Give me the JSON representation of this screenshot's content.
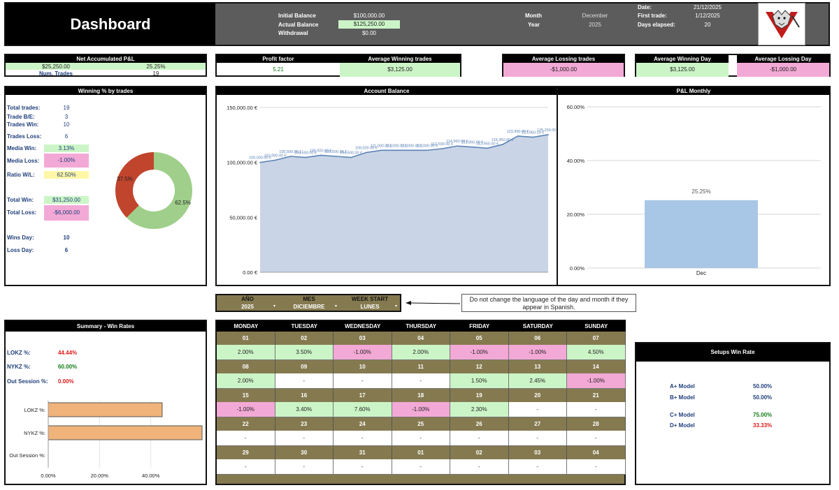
{
  "header": {
    "title": "Dashboard",
    "initial_balance_label": "Initial Balance",
    "initial_balance_value": "$100,000.00",
    "actual_balance_label": "Actual Balance",
    "actual_balance_value": "$125,250.00",
    "withdrawal_label": "Withdrawal",
    "withdrawal_value": "$0.00",
    "month_label": "Month",
    "month_value": "December",
    "year_label": "Year",
    "year_value": "2025",
    "date_label": "Date:",
    "date_value": "21/12/2025",
    "first_trade_label": "First trade:",
    "first_trade_value": "1/12/2025",
    "days_elapsed_label": "Days elapsed:",
    "days_elapsed_value": "20"
  },
  "stats": {
    "net_pnl_label": "Net Accumulated P&L",
    "net_pnl_value": "$25,250.00",
    "net_pnl_pct": "25.25%",
    "num_trades_label": "Num. Trades",
    "num_trades_value": "19",
    "profit_factor_label": "Profit factor",
    "profit_factor_value": "5.21",
    "avg_win_trades_label": "Average Winning trades",
    "avg_win_trades_value": "$3,125.00",
    "avg_loss_trades_label": "Average Lossing trades",
    "avg_loss_trades_value": "-$1,000.00",
    "avg_win_day_label": "Average Winning Day",
    "avg_win_day_value": "$3,125.00",
    "avg_loss_day_label": "Average Lossing Day",
    "avg_loss_day_value": "-$1,000.00"
  },
  "winning_panel": {
    "title": "Winning % by trades",
    "rows": [
      {
        "label": "Total trades:",
        "value": "19"
      },
      {
        "label": "Trade B/E:",
        "value": "3"
      },
      {
        "label": "Trades Win:",
        "value": "10"
      },
      {
        "label": "Trades Loss:",
        "value": "6"
      },
      {
        "label": "Media Win:",
        "value": "3.13%"
      },
      {
        "label": "Media Loss:",
        "value": "-1.00%"
      },
      {
        "label": "Ratio W/L:",
        "value": "62.50%"
      },
      {
        "label": "Total Win:",
        "value": "$31,250.00"
      },
      {
        "label": "Total Loss:",
        "value": "-$6,000.00"
      },
      {
        "label": "Wins Day:",
        "value": "10"
      },
      {
        "label": "Loss Day:",
        "value": "6"
      }
    ],
    "donut": {
      "win_pct": 62.5,
      "loss_pct": 37.5,
      "win_label": "62.5%",
      "loss_label": "37.5%",
      "win_color": "#9fcf8a",
      "loss_color": "#c0452c"
    }
  },
  "account_balance": {
    "title": "Account Balance",
    "y_ticks": [
      "150,000.00 €",
      "100,000.00 €",
      "50,000.00 €",
      "0.00 €"
    ]
  },
  "pnl_monthly": {
    "title": "P&L Monthly",
    "y_ticks": [
      "60.00%",
      "40.00%",
      "20.00%",
      "0.00%"
    ]
  },
  "chart_data": [
    {
      "type": "area",
      "title": "Account Balance",
      "ylim": [
        0,
        150000
      ],
      "grid": true,
      "series": [
        {
          "values": [
            100000,
            102000,
            105500,
            104500,
            106500,
            105500,
            104500,
            109000,
            111000,
            111000,
            111000,
            111000,
            112500,
            114950,
            113950,
            112950,
            116350,
            123950,
            122950,
            125250
          ],
          "labels": [
            "100,000.00 €",
            "102,000.00 €",
            "105,500.00 €",
            "104,500.00 €",
            "106,500.00 €",
            "105,500.00 €",
            "104,500.00 €",
            "109,000.00 €",
            "111,000.00 €",
            "111,000.00 €",
            "111,000.00 €",
            "111,000.00 €",
            "112,500.00 €",
            "114,950.00 €",
            "113,950.00 €",
            "112,950.00 €",
            "116,350.00 €",
            "123,950.00 €",
            "122,950.00 €",
            "125,250.00 €"
          ]
        }
      ]
    },
    {
      "type": "bar",
      "title": "P&L Monthly",
      "categories": [
        "Dec"
      ],
      "values": [
        25.25
      ],
      "value_labels": [
        "25.25%"
      ],
      "ylim": [
        0,
        60
      ],
      "grid": true,
      "color": "#a8c7e6"
    },
    {
      "type": "bar",
      "title": "Summary - Win Rates",
      "orientation": "horizontal",
      "categories": [
        "LOKZ %:",
        "NYKZ %:",
        "Out Session %:"
      ],
      "values": [
        44.44,
        60.0,
        0.0
      ],
      "xlim": [
        0,
        60
      ],
      "x_ticks": [
        "0.00%",
        "20.00%",
        "40.00%"
      ],
      "color": "#f0b37a"
    }
  ],
  "selectors": {
    "year_label": "AÑO",
    "year_value": "2025",
    "month_label": "MES",
    "month_value": "DICIEMBRE",
    "week_label": "WEEK START",
    "week_value": "LUNES",
    "note": "Do not change the language of the day and month if they appear in Spanish."
  },
  "summary": {
    "title": "Summary - Win Rates",
    "rows": [
      {
        "label": "LOKZ %:",
        "value": "44.44%",
        "color": "#e01818"
      },
      {
        "label": "NYKZ %:",
        "value": "60.00%",
        "color": "#127a14"
      },
      {
        "label": "Out Session %:",
        "value": "0.00%",
        "color": "#e01818"
      }
    ]
  },
  "calendar": {
    "days": [
      "MONDAY",
      "TUESDAY",
      "WEDNESDAY",
      "THURSDAY",
      "FRIDAY",
      "SATURDAY",
      "SUNDAY"
    ],
    "weeks": [
      {
        "dates": [
          "01",
          "02",
          "03",
          "04",
          "05",
          "06",
          "07"
        ],
        "values": [
          "2.00%",
          "3.50%",
          "-1.00%",
          "2.00%",
          "-1.00%",
          "-1.00%",
          "4.50%"
        ]
      },
      {
        "dates": [
          "08",
          "09",
          "10",
          "11",
          "12",
          "13",
          "14"
        ],
        "values": [
          "2.00%",
          "-",
          "-",
          "-",
          "1.50%",
          "2.45%",
          "-1.00%"
        ]
      },
      {
        "dates": [
          "15",
          "16",
          "17",
          "18",
          "19",
          "20",
          "21"
        ],
        "values": [
          "-1.00%",
          "3.40%",
          "7.60%",
          "-1.00%",
          "2.30%",
          "-",
          "-"
        ]
      },
      {
        "dates": [
          "22",
          "23",
          "24",
          "25",
          "26",
          "27",
          "28"
        ],
        "values": [
          "-",
          "-",
          "-",
          "-",
          "-",
          "-",
          "-"
        ]
      },
      {
        "dates": [
          "29",
          "30",
          "31",
          "01",
          "02",
          "03",
          "04"
        ],
        "values": [
          "-",
          "-",
          "-",
          "-",
          "-",
          "-",
          "-"
        ]
      }
    ]
  },
  "setups": {
    "title": "Setups Win Rate",
    "rows": [
      {
        "label": "A+ Model",
        "value": "50.00%",
        "color": "#1f3e7a"
      },
      {
        "label": "B+ Model",
        "value": "50.00%",
        "color": "#1f3e7a"
      },
      {
        "label": "C+ Model",
        "value": "75.00%",
        "color": "#127a14"
      },
      {
        "label": "D+ Model",
        "value": "33.33%",
        "color": "#e01818"
      }
    ]
  }
}
